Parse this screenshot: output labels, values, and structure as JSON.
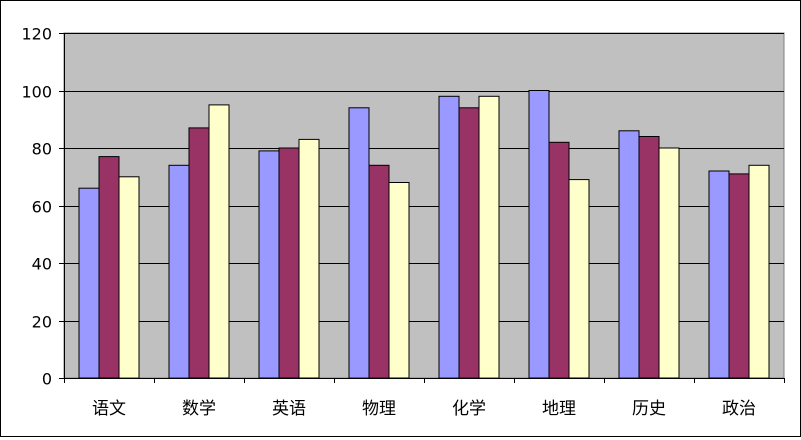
{
  "chart_data": {
    "type": "bar",
    "title": "",
    "xlabel": "",
    "ylabel": "",
    "categories": [
      "语文",
      "数学",
      "英语",
      "物理",
      "化学",
      "地理",
      "历史",
      "政治"
    ],
    "series": [
      {
        "values": [
          66,
          74,
          79,
          94,
          98,
          100,
          86,
          72
        ],
        "color": "#9999ff"
      },
      {
        "values": [
          77,
          87,
          80,
          74,
          94,
          82,
          84,
          71
        ],
        "color": "#993366"
      },
      {
        "values": [
          70,
          95,
          83,
          68,
          98,
          69,
          80,
          74
        ],
        "color": "#ffffcc"
      }
    ],
    "ylim": [
      0,
      120
    ],
    "yticks": [
      0,
      20,
      40,
      60,
      80,
      100,
      120
    ],
    "grid": true,
    "plot_background": "#c0c0c0",
    "legend": "none"
  }
}
